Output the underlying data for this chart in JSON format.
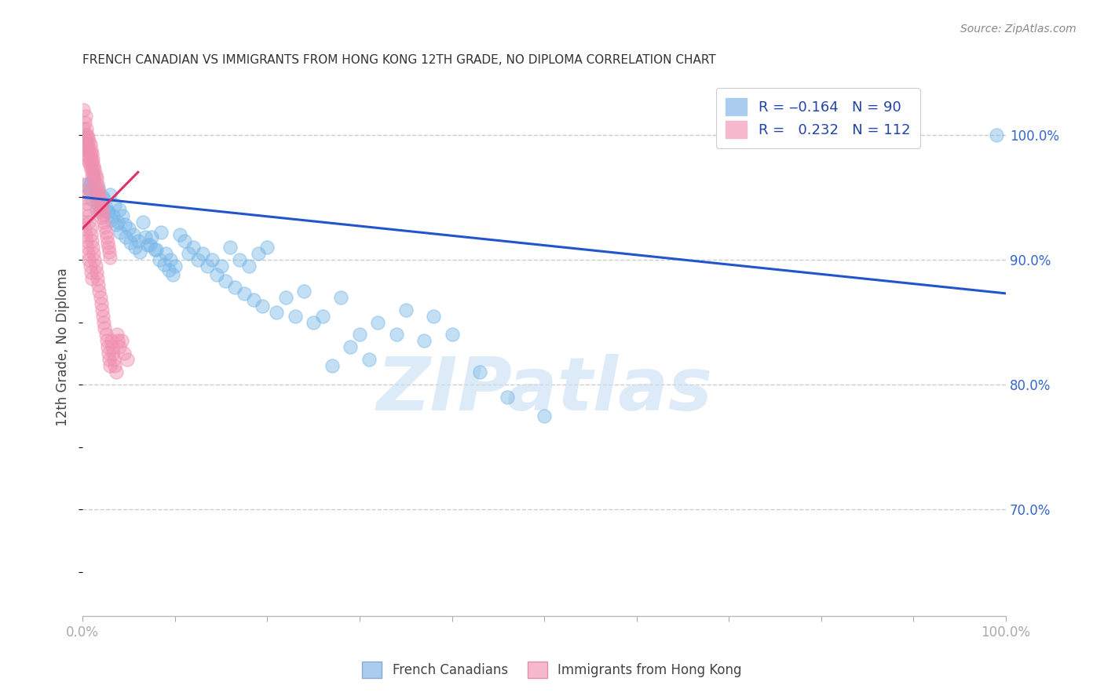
{
  "title": "FRENCH CANADIAN VS IMMIGRANTS FROM HONG KONG 12TH GRADE, NO DIPLOMA CORRELATION CHART",
  "source": "Source: ZipAtlas.com",
  "ylabel": "12th Grade, No Diploma",
  "blue_color": "#7ab8e8",
  "pink_color": "#f090b0",
  "blue_line_color": "#2255cc",
  "pink_line_color": "#dd3366",
  "watermark_color": "#cce0f5",
  "background_color": "#ffffff",
  "grid_color": "#cccccc",
  "xlim": [
    0.0,
    1.0
  ],
  "ylim": [
    0.615,
    1.045
  ],
  "y_ticks": [
    0.7,
    0.8,
    0.9,
    1.0
  ],
  "blue_trendline": [
    0.0,
    1.0,
    0.95,
    0.873
  ],
  "pink_trendline": [
    0.0,
    0.06,
    0.925,
    0.97
  ],
  "blue_scatter_x": [
    0.005,
    0.008,
    0.01,
    0.012,
    0.015,
    0.017,
    0.02,
    0.022,
    0.025,
    0.028,
    0.03,
    0.033,
    0.035,
    0.038,
    0.04,
    0.043,
    0.046,
    0.05,
    0.055,
    0.06,
    0.065,
    0.07,
    0.075,
    0.08,
    0.085,
    0.09,
    0.095,
    0.1,
    0.11,
    0.12,
    0.13,
    0.14,
    0.15,
    0.16,
    0.17,
    0.18,
    0.19,
    0.2,
    0.22,
    0.24,
    0.26,
    0.28,
    0.3,
    0.32,
    0.35,
    0.38,
    0.4,
    0.43,
    0.46,
    0.5,
    0.006,
    0.009,
    0.013,
    0.016,
    0.019,
    0.023,
    0.027,
    0.031,
    0.036,
    0.041,
    0.047,
    0.052,
    0.057,
    0.062,
    0.068,
    0.073,
    0.078,
    0.083,
    0.088,
    0.093,
    0.098,
    0.105,
    0.115,
    0.125,
    0.135,
    0.145,
    0.155,
    0.165,
    0.175,
    0.185,
    0.195,
    0.21,
    0.23,
    0.25,
    0.27,
    0.29,
    0.31,
    0.34,
    0.37,
    0.99
  ],
  "blue_scatter_y": [
    0.96,
    0.955,
    0.948,
    0.965,
    0.94,
    0.958,
    0.945,
    0.95,
    0.942,
    0.938,
    0.952,
    0.935,
    0.944,
    0.93,
    0.94,
    0.935,
    0.928,
    0.925,
    0.92,
    0.915,
    0.93,
    0.912,
    0.918,
    0.908,
    0.922,
    0.905,
    0.9,
    0.895,
    0.915,
    0.91,
    0.905,
    0.9,
    0.895,
    0.91,
    0.9,
    0.895,
    0.905,
    0.91,
    0.87,
    0.875,
    0.855,
    0.87,
    0.84,
    0.85,
    0.86,
    0.855,
    0.84,
    0.81,
    0.79,
    0.775,
    0.958,
    0.962,
    0.952,
    0.945,
    0.94,
    0.948,
    0.938,
    0.932,
    0.928,
    0.922,
    0.918,
    0.914,
    0.91,
    0.906,
    0.918,
    0.912,
    0.908,
    0.9,
    0.896,
    0.892,
    0.888,
    0.92,
    0.905,
    0.9,
    0.895,
    0.888,
    0.883,
    0.878,
    0.873,
    0.868,
    0.863,
    0.858,
    0.855,
    0.85,
    0.815,
    0.83,
    0.82,
    0.84,
    0.835,
    1.0
  ],
  "pink_scatter_x": [
    0.001,
    0.001,
    0.001,
    0.002,
    0.002,
    0.002,
    0.003,
    0.003,
    0.003,
    0.004,
    0.004,
    0.004,
    0.005,
    0.005,
    0.005,
    0.006,
    0.006,
    0.006,
    0.007,
    0.007,
    0.007,
    0.008,
    0.008,
    0.008,
    0.009,
    0.009,
    0.009,
    0.01,
    0.01,
    0.01,
    0.011,
    0.011,
    0.012,
    0.012,
    0.013,
    0.013,
    0.014,
    0.014,
    0.015,
    0.015,
    0.016,
    0.016,
    0.017,
    0.017,
    0.018,
    0.018,
    0.019,
    0.019,
    0.02,
    0.02,
    0.021,
    0.022,
    0.023,
    0.024,
    0.025,
    0.026,
    0.027,
    0.028,
    0.029,
    0.03,
    0.001,
    0.002,
    0.003,
    0.004,
    0.005,
    0.006,
    0.007,
    0.008,
    0.009,
    0.01,
    0.011,
    0.012,
    0.013,
    0.014,
    0.015,
    0.016,
    0.017,
    0.018,
    0.019,
    0.02,
    0.021,
    0.022,
    0.023,
    0.024,
    0.025,
    0.026,
    0.027,
    0.028,
    0.029,
    0.03,
    0.031,
    0.032,
    0.033,
    0.034,
    0.035,
    0.036,
    0.037,
    0.038,
    0.04,
    0.042,
    0.045,
    0.048,
    0.001,
    0.002,
    0.003,
    0.004,
    0.005,
    0.006,
    0.007,
    0.008,
    0.009,
    0.01
  ],
  "pink_scatter_y": [
    1.02,
    1.005,
    0.998,
    1.01,
    1.0,
    0.995,
    1.015,
    0.99,
    0.985,
    1.005,
    0.998,
    0.988,
    1.0,
    0.993,
    0.983,
    0.998,
    0.99,
    0.98,
    0.995,
    0.988,
    0.978,
    0.992,
    0.985,
    0.975,
    0.988,
    0.98,
    0.972,
    0.985,
    0.978,
    0.968,
    0.98,
    0.972,
    0.975,
    0.968,
    0.972,
    0.962,
    0.968,
    0.958,
    0.965,
    0.955,
    0.96,
    0.95,
    0.956,
    0.946,
    0.952,
    0.942,
    0.948,
    0.938,
    0.944,
    0.934,
    0.94,
    0.936,
    0.93,
    0.926,
    0.922,
    0.918,
    0.914,
    0.91,
    0.906,
    0.902,
    0.96,
    0.955,
    0.95,
    0.945,
    0.94,
    0.935,
    0.93,
    0.925,
    0.92,
    0.915,
    0.91,
    0.905,
    0.9,
    0.895,
    0.89,
    0.885,
    0.88,
    0.875,
    0.87,
    0.865,
    0.86,
    0.855,
    0.85,
    0.845,
    0.84,
    0.835,
    0.83,
    0.825,
    0.82,
    0.815,
    0.835,
    0.83,
    0.825,
    0.82,
    0.815,
    0.81,
    0.84,
    0.835,
    0.83,
    0.835,
    0.825,
    0.82,
    0.93,
    0.925,
    0.92,
    0.915,
    0.91,
    0.905,
    0.9,
    0.895,
    0.89,
    0.885
  ]
}
